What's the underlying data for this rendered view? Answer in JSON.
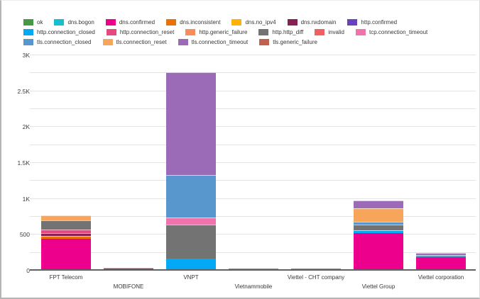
{
  "legend": {
    "rows": [
      [
        {
          "label": "ok",
          "color": "#449944"
        },
        {
          "label": "dns.bogon",
          "color": "#17BECF"
        },
        {
          "label": "dns.confirmed",
          "color": "#EC008C"
        },
        {
          "label": "dns.inconsistent",
          "color": "#E8710A"
        },
        {
          "label": "dns.no_ipv4",
          "color": "#FFB300"
        },
        {
          "label": "dns.nxdomain",
          "color": "#872053"
        },
        {
          "label": "http.confirmed",
          "color": "#6742C0"
        }
      ],
      [
        {
          "label": "http.connection_closed",
          "color": "#03A9F4"
        },
        {
          "label": "http.connection_reset",
          "color": "#E8487F"
        },
        {
          "label": "http.generic_failure",
          "color": "#FA8C5C"
        },
        {
          "label": "http.http_diff",
          "color": "#737373"
        },
        {
          "label": "invalid",
          "color": "#EF6160"
        },
        {
          "label": "tcp.connection_timeout",
          "color": "#F173AC"
        }
      ],
      [
        {
          "label": "tls.connection_closed",
          "color": "#5897CE"
        },
        {
          "label": "tls.connection_reset",
          "color": "#F8A55C"
        },
        {
          "label": "tls.connection_timeout",
          "color": "#9C6BB8"
        },
        {
          "label": "tls.generic_failure",
          "color": "#C06150"
        }
      ]
    ]
  },
  "chart_data": {
    "type": "bar",
    "stacked": true,
    "title": "",
    "xlabel": "",
    "ylabel": "",
    "ylim": [
      0,
      3000
    ],
    "grid": true,
    "grid_interval": 250,
    "legend_position": "top",
    "y_ticks": [
      {
        "value": 0,
        "label": "0"
      },
      {
        "value": 500,
        "label": "500"
      },
      {
        "value": 1000,
        "label": "1K"
      },
      {
        "value": 1500,
        "label": "1.5K"
      },
      {
        "value": 2000,
        "label": "2K"
      },
      {
        "value": 2500,
        "label": "2.5K"
      },
      {
        "value": 3000,
        "label": "3K"
      }
    ],
    "categories": [
      "FPT Telecom",
      "MOBIFONE",
      "VNPT",
      "Vietnammobile",
      "Viettel - CHT company",
      "Viettel Group",
      "Viettel corporation"
    ],
    "category_label_rows": [
      0,
      1,
      0,
      1,
      0,
      1,
      0
    ],
    "series": [
      {
        "name": "ok",
        "color": "#449944",
        "values": [
          0,
          0,
          0,
          0,
          0,
          0,
          0
        ]
      },
      {
        "name": "dns.bogon",
        "color": "#17BECF",
        "values": [
          0,
          0,
          0,
          0,
          0,
          0,
          0
        ]
      },
      {
        "name": "dns.confirmed",
        "color": "#EC008C",
        "values": [
          420,
          8,
          0,
          0,
          0,
          500,
          170
        ]
      },
      {
        "name": "dns.inconsistent",
        "color": "#E8710A",
        "values": [
          35,
          0,
          0,
          0,
          0,
          0,
          0
        ]
      },
      {
        "name": "dns.no_ipv4",
        "color": "#FFB300",
        "values": [
          0,
          0,
          0,
          0,
          0,
          0,
          0
        ]
      },
      {
        "name": "dns.nxdomain",
        "color": "#872053",
        "values": [
          30,
          7,
          0,
          0,
          0,
          0,
          0
        ]
      },
      {
        "name": "http.confirmed",
        "color": "#6742C0",
        "values": [
          0,
          0,
          0,
          0,
          0,
          0,
          0
        ]
      },
      {
        "name": "http.connection_closed",
        "color": "#03A9F4",
        "values": [
          0,
          0,
          150,
          0,
          0,
          30,
          0
        ]
      },
      {
        "name": "http.connection_reset",
        "color": "#E8487F",
        "values": [
          40,
          0,
          0,
          0,
          0,
          0,
          0
        ]
      },
      {
        "name": "http.generic_failure",
        "color": "#FA8C5C",
        "values": [
          0,
          0,
          0,
          0,
          0,
          0,
          0
        ]
      },
      {
        "name": "http.http_diff",
        "color": "#737373",
        "values": [
          115,
          0,
          460,
          0,
          0,
          70,
          0
        ]
      },
      {
        "name": "invalid",
        "color": "#EF6160",
        "values": [
          0,
          0,
          0,
          0,
          0,
          0,
          0
        ]
      },
      {
        "name": "tcp.connection_timeout",
        "color": "#F173AC",
        "values": [
          0,
          0,
          90,
          0,
          0,
          0,
          0
        ]
      },
      {
        "name": "tls.connection_closed",
        "color": "#5897CE",
        "values": [
          0,
          0,
          580,
          8,
          10,
          30,
          20
        ]
      },
      {
        "name": "tls.connection_reset",
        "color": "#F8A55C",
        "values": [
          65,
          0,
          0,
          0,
          0,
          180,
          0
        ]
      },
      {
        "name": "tls.connection_timeout",
        "color": "#9C6BB8",
        "values": [
          0,
          0,
          1420,
          0,
          0,
          100,
          20
        ]
      },
      {
        "name": "tls.generic_failure",
        "color": "#C06150",
        "values": [
          0,
          0,
          0,
          0,
          0,
          0,
          0
        ]
      }
    ]
  },
  "colors": {
    "axis_line": "#616161",
    "grid_line": "#e4e4e4",
    "tick_text": "#3d3d3d"
  }
}
